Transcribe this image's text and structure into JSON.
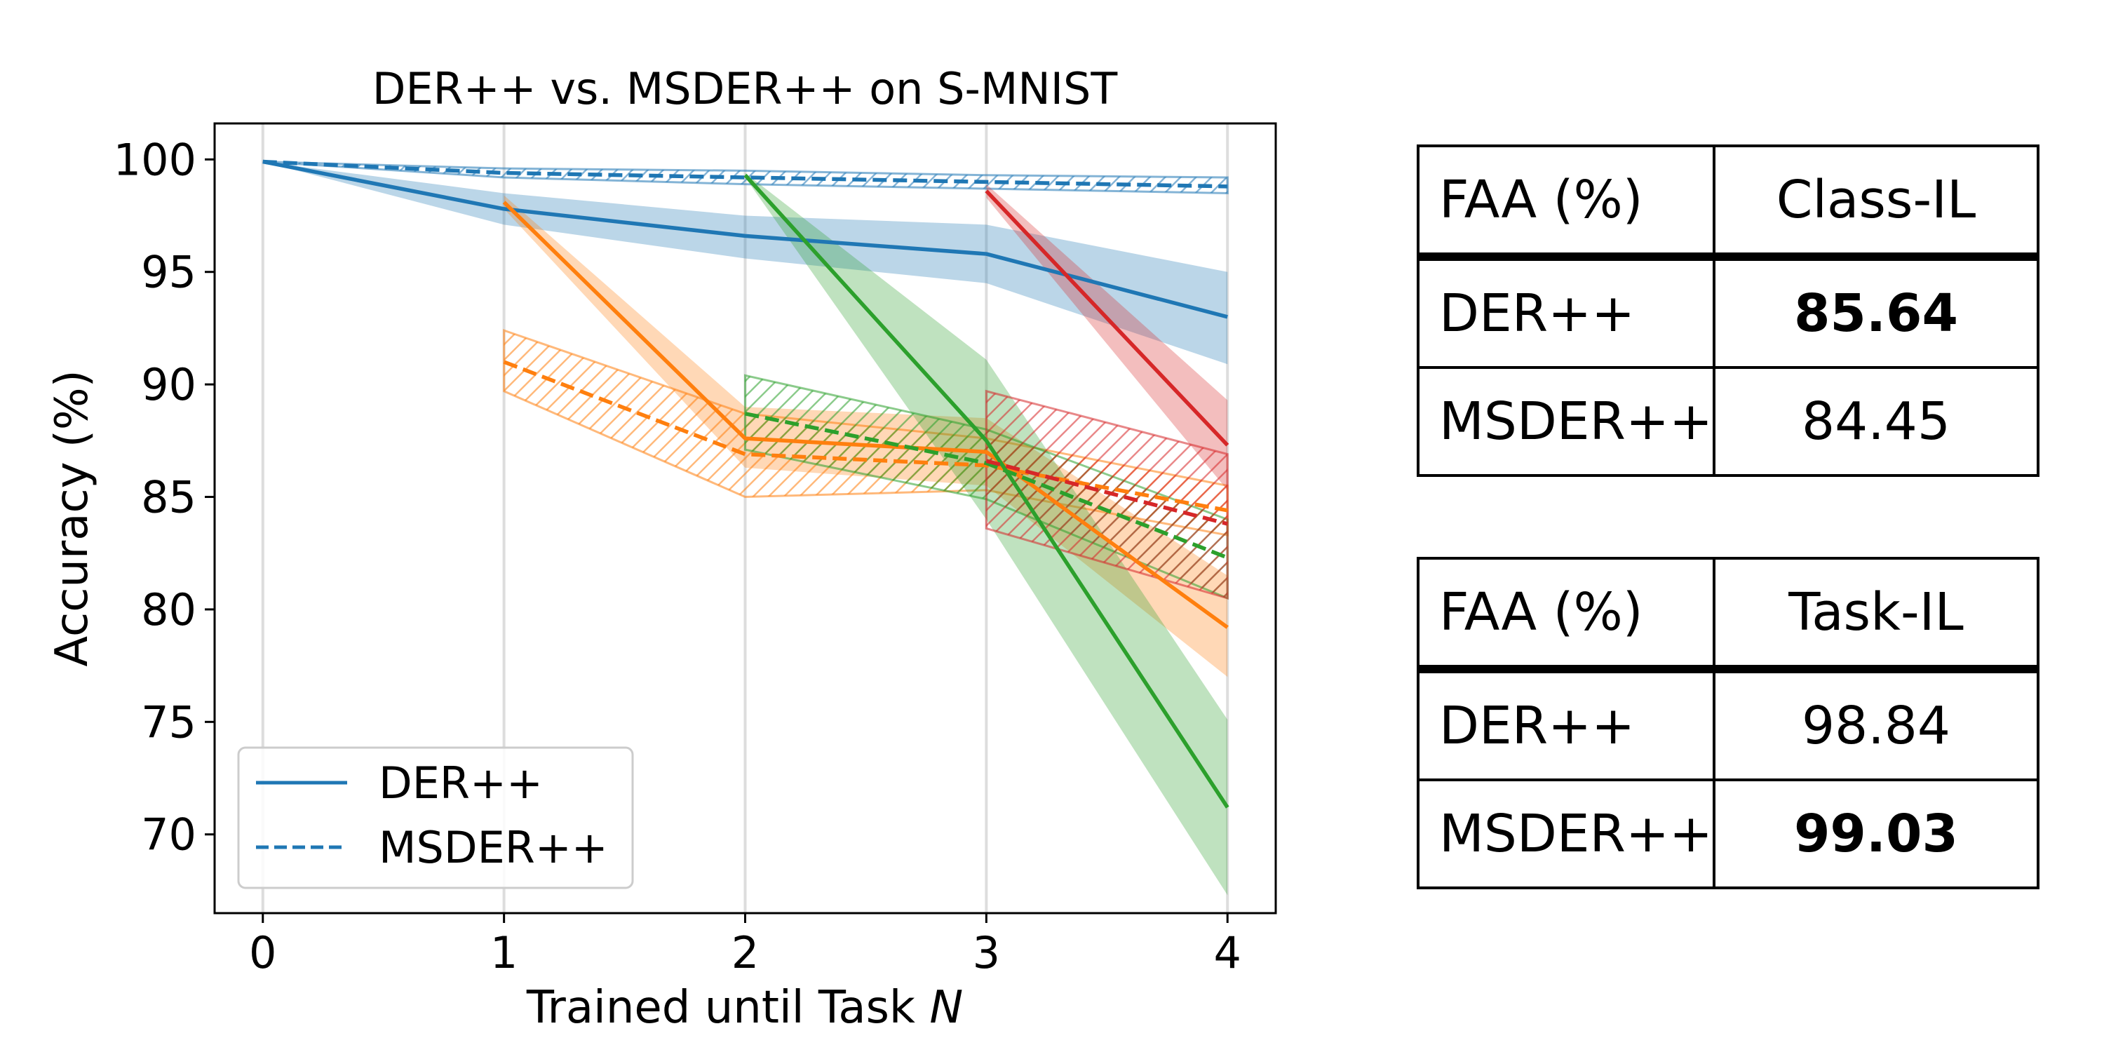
{
  "chart_data": {
    "type": "line",
    "title": "DER++ vs. MSDER++ on S-MNIST",
    "xlabel": "Trained until Task",
    "xlabel_var": "N",
    "ylabel": "Accuracy (%)",
    "xlim": [
      -0.2,
      4.2
    ],
    "ylim": [
      66.5,
      101.6
    ],
    "x_ticks": [
      0,
      1,
      2,
      3,
      4
    ],
    "y_ticks": [
      70,
      75,
      80,
      85,
      90,
      95,
      100
    ],
    "vertical_gridlines": [
      0,
      1,
      2,
      3,
      4
    ],
    "legend": {
      "location": "lower-left",
      "entries": [
        {
          "label": "DER++",
          "style": "solid"
        },
        {
          "label": "MSDER++",
          "style": "dashed"
        }
      ]
    },
    "series": [
      {
        "name": "DER++ task 0",
        "method": "DER++",
        "color": "#1f77b4",
        "x": [
          0,
          1,
          2,
          3,
          4
        ],
        "values": [
          99.9,
          97.8,
          96.6,
          95.8,
          93.0
        ],
        "lower": [
          99.9,
          97.1,
          95.6,
          94.5,
          90.9
        ],
        "upper": [
          99.9,
          98.5,
          97.5,
          97.1,
          95.0
        ]
      },
      {
        "name": "MSDER++ task 0",
        "method": "MSDER++",
        "color": "#1f77b4",
        "x": [
          0,
          1,
          2,
          3,
          4
        ],
        "values": [
          99.9,
          99.4,
          99.2,
          99.0,
          98.8
        ],
        "lower": [
          99.9,
          99.2,
          98.9,
          98.7,
          98.5
        ],
        "upper": [
          99.9,
          99.6,
          99.5,
          99.3,
          99.2
        ]
      },
      {
        "name": "DER++ task 1",
        "method": "DER++",
        "color": "#ff7f0e",
        "x": [
          1,
          2,
          3,
          4
        ],
        "values": [
          98.1,
          87.6,
          87.0,
          79.2
        ],
        "lower": [
          97.8,
          86.3,
          85.5,
          77.0
        ],
        "upper": [
          98.4,
          89.0,
          88.5,
          81.5
        ]
      },
      {
        "name": "MSDER++ task 1",
        "method": "MSDER++",
        "color": "#ff7f0e",
        "x": [
          1,
          2,
          3,
          4
        ],
        "values": [
          91.0,
          86.9,
          86.4,
          84.4
        ],
        "lower": [
          89.7,
          85.0,
          85.3,
          83.3
        ],
        "upper": [
          92.4,
          88.7,
          87.6,
          85.5
        ]
      },
      {
        "name": "DER++ task 2",
        "method": "DER++",
        "color": "#2ca02c",
        "x": [
          2,
          3,
          4
        ],
        "values": [
          99.3,
          87.5,
          71.2
        ],
        "lower": [
          99.2,
          84.0,
          67.3
        ],
        "upper": [
          99.4,
          91.1,
          75.1
        ]
      },
      {
        "name": "MSDER++ task 2",
        "method": "MSDER++",
        "color": "#2ca02c",
        "x": [
          2,
          3,
          4
        ],
        "values": [
          88.7,
          86.5,
          82.3
        ],
        "lower": [
          87.1,
          84.9,
          80.5
        ],
        "upper": [
          90.4,
          88.0,
          84.0
        ]
      },
      {
        "name": "DER++ task 3",
        "method": "DER++",
        "color": "#d62728",
        "x": [
          3,
          4
        ],
        "values": [
          98.6,
          87.3
        ],
        "lower": [
          98.3,
          85.3
        ],
        "upper": [
          98.9,
          89.3
        ]
      },
      {
        "name": "MSDER++ task 3",
        "method": "MSDER++",
        "color": "#d62728",
        "x": [
          3,
          4
        ],
        "values": [
          86.6,
          83.8
        ],
        "lower": [
          83.6,
          80.5
        ],
        "upper": [
          89.7,
          86.9
        ]
      }
    ]
  },
  "tables": [
    {
      "header": [
        "FAA (%)",
        "Class-IL"
      ],
      "rows": [
        {
          "label": "DER++",
          "value": "85.64",
          "bold": true
        },
        {
          "label": "MSDER++",
          "value": "84.45",
          "bold": false
        }
      ]
    },
    {
      "header": [
        "FAA (%)",
        "Task-IL"
      ],
      "rows": [
        {
          "label": "DER++",
          "value": "98.84",
          "bold": false
        },
        {
          "label": "MSDER++",
          "value": "99.03",
          "bold": true
        }
      ]
    }
  ]
}
